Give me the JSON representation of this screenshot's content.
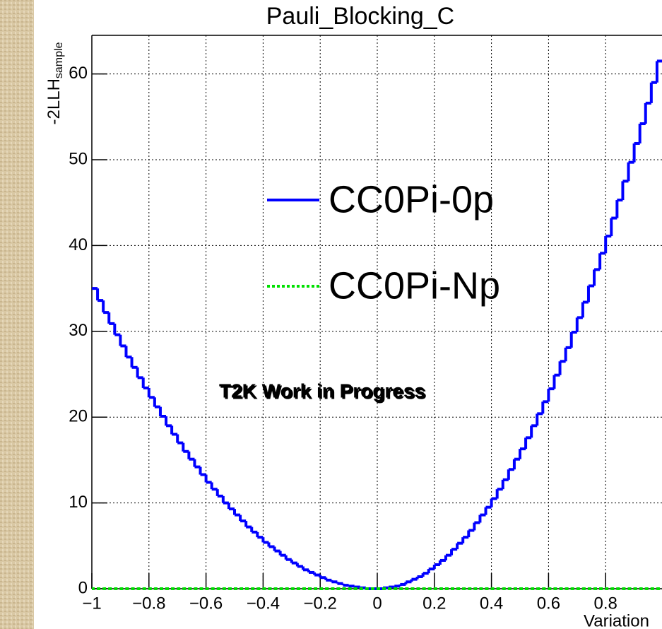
{
  "chart_data": {
    "type": "histogram",
    "title": "Pauli_Blocking_C",
    "xlabel": "Variation",
    "ylabel": "-2LLH",
    "ylabel_subscript": "sample",
    "annotation": "T2K Work in Progress",
    "bins": [
      -1,
      -0.98,
      -0.96,
      -0.94,
      -0.92,
      -0.9,
      -0.88,
      -0.86,
      -0.84,
      -0.82,
      -0.8,
      -0.78,
      -0.76,
      -0.74,
      -0.72,
      -0.7,
      -0.68,
      -0.66,
      -0.64,
      -0.62,
      -0.6,
      -0.58,
      -0.56,
      -0.54,
      -0.52,
      -0.5,
      -0.48,
      -0.46,
      -0.44,
      -0.42,
      -0.4,
      -0.38,
      -0.36,
      -0.34,
      -0.32,
      -0.3,
      -0.28,
      -0.26,
      -0.24,
      -0.22,
      -0.2,
      -0.18,
      -0.16,
      -0.14,
      -0.12,
      -0.1,
      -0.08,
      -0.06,
      -0.04,
      -0.02,
      0,
      0.02,
      0.04,
      0.06,
      0.08,
      0.1,
      0.12,
      0.14,
      0.16,
      0.18,
      0.2,
      0.22,
      0.24,
      0.26,
      0.28,
      0.3,
      0.32,
      0.34,
      0.36,
      0.38,
      0.4,
      0.42,
      0.44,
      0.46,
      0.48,
      0.5,
      0.52,
      0.54,
      0.56,
      0.58,
      0.6,
      0.62,
      0.64,
      0.66,
      0.68,
      0.7,
      0.72,
      0.74,
      0.76,
      0.78,
      0.8,
      0.82,
      0.84,
      0.86,
      0.88,
      0.9,
      0.92,
      0.94,
      0.96,
      0.98,
      1
    ],
    "series": [
      {
        "name": "CC0Pi-0p",
        "color": "#0000ff",
        "dashed": false,
        "values": [
          35.0,
          33.6,
          32.2,
          30.9,
          29.6,
          28.3,
          27.0,
          25.8,
          24.6,
          23.4,
          22.3,
          21.2,
          20.1,
          19.0,
          18.0,
          17.0,
          16.0,
          15.1,
          14.2,
          13.3,
          12.4,
          11.6,
          10.8,
          10.0,
          9.3,
          8.6,
          7.9,
          7.2,
          6.6,
          6.0,
          5.4,
          4.9,
          4.4,
          3.9,
          3.4,
          3.0,
          2.6,
          2.2,
          1.9,
          1.6,
          1.3,
          1.0,
          0.8,
          0.6,
          0.4,
          0.3,
          0.2,
          0.1,
          0.0,
          0.0,
          0.0,
          0.1,
          0.2,
          0.3,
          0.5,
          0.8,
          1.1,
          1.4,
          1.8,
          2.3,
          2.8,
          3.3,
          3.9,
          4.6,
          5.3,
          6.0,
          6.8,
          7.7,
          8.6,
          9.5,
          10.5,
          11.6,
          12.7,
          13.9,
          15.1,
          16.3,
          17.6,
          19.0,
          20.4,
          21.8,
          23.3,
          24.9,
          26.5,
          28.1,
          29.9,
          31.6,
          33.4,
          35.3,
          37.2,
          39.1,
          41.1,
          43.2,
          45.3,
          47.5,
          49.7,
          51.9,
          54.2,
          56.6,
          59.0,
          61.5
        ]
      },
      {
        "name": "CC0Pi-Np",
        "color": "#00e000",
        "dashed": true,
        "values": [
          0,
          0,
          0,
          0,
          0,
          0,
          0,
          0,
          0,
          0,
          0,
          0,
          0,
          0,
          0,
          0,
          0,
          0,
          0,
          0,
          0,
          0,
          0,
          0,
          0,
          0,
          0,
          0,
          0,
          0,
          0,
          0,
          0,
          0,
          0,
          0,
          0,
          0,
          0,
          0,
          0,
          0,
          0,
          0,
          0,
          0,
          0,
          0,
          0,
          0,
          0,
          0,
          0,
          0,
          0,
          0,
          0,
          0,
          0,
          0,
          0,
          0,
          0,
          0,
          0,
          0,
          0,
          0,
          0,
          0,
          0,
          0,
          0,
          0,
          0,
          0,
          0,
          0,
          0,
          0,
          0,
          0,
          0,
          0,
          0,
          0,
          0,
          0,
          0,
          0,
          0,
          0,
          0,
          0,
          0,
          0,
          0,
          0,
          0,
          0
        ]
      }
    ],
    "xlim": [
      -1,
      1
    ],
    "ylim": [
      0,
      64.5
    ],
    "xticks": [
      -1,
      -0.8,
      -0.6,
      -0.4,
      -0.2,
      0,
      0.2,
      0.4,
      0.6,
      0.8
    ],
    "yticks": [
      0,
      10,
      20,
      30,
      40,
      50,
      60
    ],
    "grid": true,
    "legend": "center"
  }
}
